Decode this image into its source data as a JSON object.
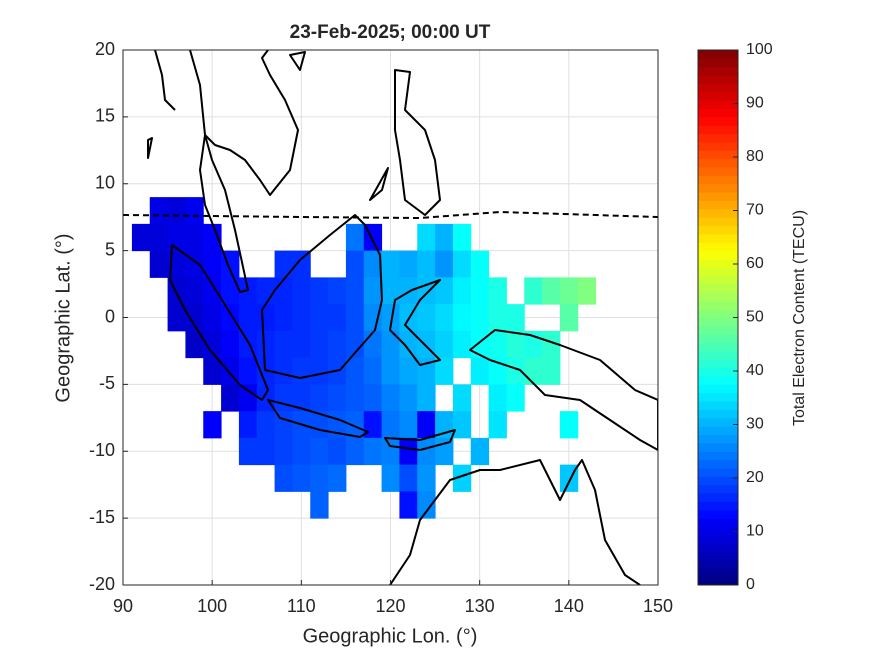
{
  "chart_data": {
    "type": "heatmap",
    "title": "23-Feb-2025; 00:00 UT",
    "xlabel": "Geographic Lon. (°)",
    "ylabel": "Geographic Lat. (°)",
    "xlim": [
      90,
      150
    ],
    "ylim": [
      -20,
      20
    ],
    "xticks": [
      90,
      100,
      110,
      120,
      130,
      140,
      150
    ],
    "yticks": [
      -20,
      -15,
      -10,
      -5,
      0,
      5,
      10,
      15,
      20
    ],
    "grid": true,
    "colormap": "jet",
    "colorbar": {
      "label": "Total Electron Content (TECU)",
      "lim": [
        0,
        100
      ],
      "ticks": [
        0,
        10,
        20,
        30,
        40,
        50,
        60,
        70,
        80,
        90,
        100
      ]
    },
    "cells": {
      "x": [
        94,
        96,
        98,
        92,
        94,
        96,
        98,
        100,
        116,
        118,
        124,
        126,
        128,
        94,
        96,
        98,
        100,
        102,
        108,
        110,
        116,
        118,
        120,
        122,
        124,
        126,
        128,
        130,
        96,
        98,
        100,
        102,
        104,
        106,
        108,
        110,
        112,
        114,
        116,
        118,
        120,
        122,
        124,
        126,
        128,
        130,
        132,
        136,
        138,
        140,
        142,
        96,
        98,
        100,
        102,
        104,
        106,
        108,
        110,
        112,
        114,
        116,
        118,
        120,
        122,
        124,
        126,
        128,
        130,
        132,
        134,
        140,
        98,
        100,
        102,
        104,
        106,
        108,
        110,
        112,
        114,
        116,
        118,
        120,
        122,
        124,
        126,
        128,
        130,
        132,
        134,
        136,
        138,
        100,
        102,
        104,
        106,
        108,
        110,
        112,
        114,
        116,
        118,
        120,
        122,
        124,
        126,
        130,
        132,
        134,
        136,
        138,
        102,
        104,
        106,
        108,
        110,
        112,
        114,
        116,
        118,
        120,
        122,
        124,
        128,
        132,
        134,
        100,
        104,
        106,
        108,
        110,
        112,
        114,
        116,
        118,
        120,
        122,
        124,
        126,
        128,
        132,
        140,
        104,
        106,
        108,
        110,
        112,
        114,
        116,
        118,
        120,
        122,
        124,
        126,
        130,
        108,
        110,
        112,
        114,
        120,
        122,
        124,
        128,
        140,
        112,
        122,
        124
      ],
      "y": [
        8,
        8,
        8,
        6,
        6,
        6,
        6,
        6,
        6,
        6,
        6,
        6,
        6,
        4,
        4,
        4,
        4,
        4,
        4,
        4,
        4,
        4,
        4,
        4,
        4,
        4,
        4,
        4,
        2,
        2,
        2,
        2,
        2,
        2,
        2,
        2,
        2,
        2,
        2,
        2,
        2,
        2,
        2,
        2,
        2,
        2,
        2,
        2,
        2,
        2,
        2,
        0,
        0,
        0,
        0,
        0,
        0,
        0,
        0,
        0,
        0,
        0,
        0,
        0,
        0,
        0,
        0,
        0,
        0,
        0,
        0,
        0,
        -2,
        -2,
        -2,
        -2,
        -2,
        -2,
        -2,
        -2,
        -2,
        -2,
        -2,
        -2,
        -2,
        -2,
        -2,
        -2,
        -2,
        -2,
        -2,
        -2,
        -2,
        -4,
        -4,
        -4,
        -4,
        -4,
        -4,
        -4,
        -4,
        -4,
        -4,
        -4,
        -4,
        -4,
        -4,
        -4,
        -4,
        -4,
        -4,
        -4,
        -6,
        -6,
        -6,
        -6,
        -6,
        -6,
        -6,
        -6,
        -6,
        -6,
        -6,
        -6,
        -6,
        -6,
        -6,
        -8,
        -8,
        -8,
        -8,
        -8,
        -8,
        -8,
        -8,
        -8,
        -8,
        -8,
        -8,
        -8,
        -8,
        -8,
        -8,
        -10,
        -10,
        -10,
        -10,
        -10,
        -10,
        -10,
        -10,
        -10,
        -10,
        -10,
        -10,
        -10,
        -12,
        -12,
        -12,
        -12,
        -12,
        -12,
        -12,
        -12,
        -12,
        -14,
        -14,
        -14
      ],
      "values": [
        10,
        9,
        11,
        9,
        9,
        10,
        10,
        12,
        24,
        12,
        34,
        30,
        38,
        8,
        9,
        10,
        12,
        14,
        17,
        17,
        20,
        26,
        30,
        29,
        31,
        27,
        34,
        38,
        8,
        9,
        11,
        14,
        15,
        16,
        16,
        17,
        18,
        19,
        20,
        27,
        30,
        30,
        31,
        32,
        36,
        38,
        40,
        42,
        46,
        48,
        50,
        8,
        8,
        10,
        13,
        15,
        15,
        16,
        17,
        18,
        18,
        20,
        26,
        28,
        31,
        32,
        34,
        37,
        38,
        40,
        40,
        46,
        7,
        9,
        12,
        15,
        16,
        17,
        17,
        18,
        19,
        20,
        24,
        27,
        30,
        31,
        33,
        36,
        38,
        39,
        41,
        40,
        42,
        8,
        10,
        14,
        16,
        17,
        18,
        18,
        19,
        21,
        23,
        27,
        29,
        30,
        34,
        36,
        38,
        40,
        42,
        42,
        8,
        11,
        16,
        18,
        18,
        19,
        20,
        21,
        22,
        25,
        27,
        30,
        34,
        36,
        38,
        12,
        15,
        18,
        19,
        20,
        20,
        21,
        22,
        14,
        24,
        26,
        12,
        30,
        32,
        35,
        38,
        18,
        18,
        19,
        20,
        21,
        20,
        22,
        24,
        25,
        12,
        26,
        28,
        30,
        20,
        21,
        22,
        23,
        26,
        20,
        27,
        33,
        32,
        22,
        14,
        26
      ]
    }
  }
}
